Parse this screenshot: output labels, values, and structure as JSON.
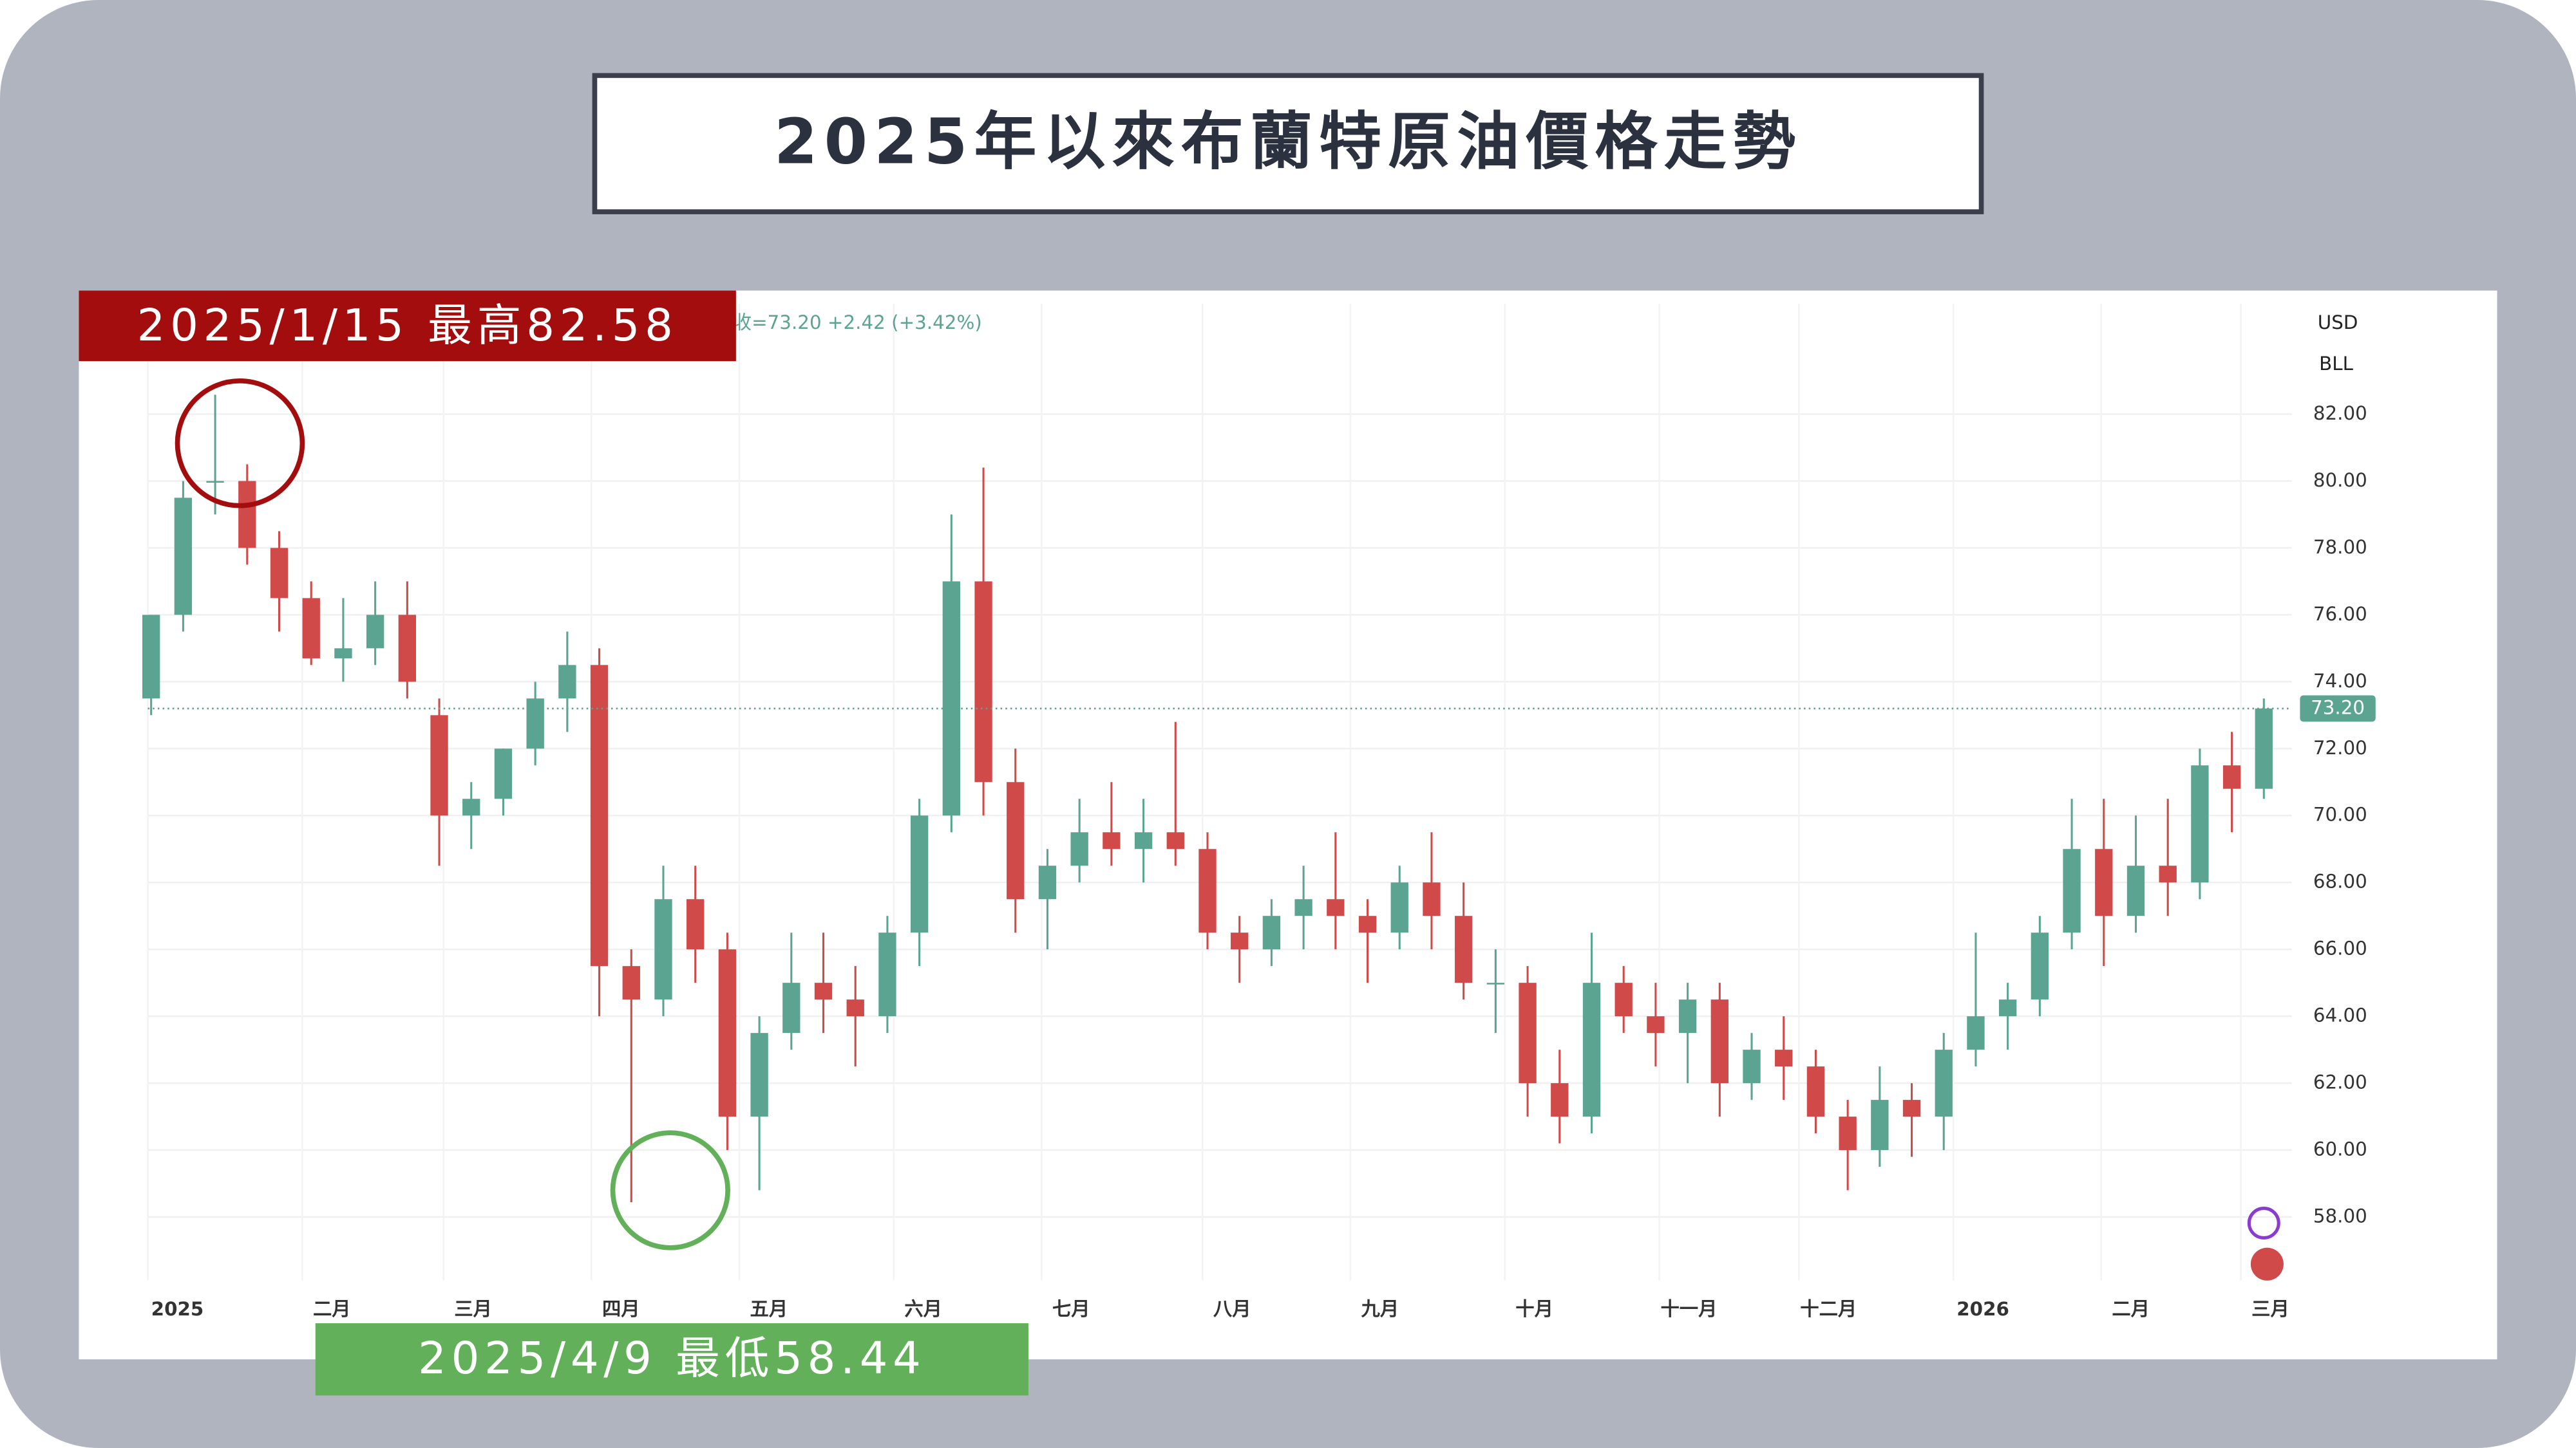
{
  "chart_data": {
    "type": "candlestick",
    "title": "2025年以來布蘭特原油價格走勢",
    "legend_text": "收=73.20  +2.42 (+3.42%)",
    "currency": "USD",
    "unit": "BLL",
    "last_price": {
      "value": 73.2,
      "label": "73.20"
    },
    "annotations": [
      "2025/1/15 最高82.58",
      "2025/4/9 最低58.44"
    ],
    "month_labels": [
      "2025",
      "二月",
      "三月",
      "四月",
      "五月",
      "六月",
      "七月",
      "八月",
      "九月",
      "十月",
      "十一月",
      "十二月",
      "2026",
      "二月",
      "三月"
    ],
    "up_color": "#5aa491",
    "down_color": "#d04a4a",
    "ylim": [
      56.1,
      85.3
    ],
    "yticks": [
      {
        "value": 58,
        "label": "58.00"
      },
      {
        "value": 60,
        "label": "60.00"
      },
      {
        "value": 62,
        "label": "62.00"
      },
      {
        "value": 64,
        "label": "64.00"
      },
      {
        "value": 66,
        "label": "66.00"
      },
      {
        "value": 68,
        "label": "68.00"
      },
      {
        "value": 70,
        "label": "70.00"
      },
      {
        "value": 72,
        "label": "72.00"
      },
      {
        "value": 74,
        "label": "74.00"
      },
      {
        "value": 76,
        "label": "76.00"
      },
      {
        "value": 78,
        "label": "78.00"
      },
      {
        "value": 80,
        "label": "80.00"
      },
      {
        "value": 82,
        "label": "82.00"
      }
    ],
    "grid": true,
    "open": [
      73.5,
      76,
      80,
      80,
      78,
      76.5,
      74.7,
      75,
      76,
      73,
      70,
      70.5,
      72,
      73.5,
      74.5,
      65.5,
      64.5,
      67.5,
      66,
      61,
      63.5,
      65,
      64.5,
      64,
      66.5,
      70,
      77,
      71,
      67.5,
      68.5,
      69.5,
      69,
      69.5,
      69,
      66.5,
      66,
      67,
      67.5,
      67,
      66.5,
      68,
      67,
      65,
      65,
      62,
      61,
      65,
      64,
      63.5,
      64.5,
      62,
      63,
      62.5,
      61,
      60,
      61.5,
      61,
      63,
      64,
      64.5,
      66.5,
      69,
      67,
      68.5,
      68,
      71.5,
      70.8
    ],
    "high": [
      76,
      80,
      82.58,
      80.5,
      78.5,
      77,
      76.5,
      77,
      77,
      73.5,
      71,
      72,
      74,
      75.5,
      75,
      66,
      68.5,
      68.5,
      66.5,
      64,
      66.5,
      66.5,
      65.5,
      67,
      70.5,
      79,
      80.4,
      72,
      69,
      70.5,
      71,
      70.5,
      72.8,
      69.5,
      67,
      67.5,
      68.5,
      69.5,
      67.5,
      68.5,
      69.5,
      68,
      66,
      65.5,
      63,
      66.5,
      65.5,
      65,
      65,
      65,
      63.5,
      64,
      63,
      61.5,
      62.5,
      62,
      63.5,
      66.5,
      65,
      67,
      70.5,
      70.5,
      70,
      70.5,
      72,
      72.5,
      73.5
    ],
    "low": [
      73,
      75.5,
      79,
      77.5,
      75.5,
      74.5,
      74,
      74.5,
      73.5,
      68.5,
      69,
      70,
      71.5,
      72.5,
      64,
      58.44,
      64,
      65,
      60,
      58.8,
      63,
      63.5,
      62.5,
      63.5,
      65.5,
      69.5,
      70,
      66.5,
      66,
      68,
      68.5,
      68,
      68.5,
      66,
      65,
      65.5,
      66,
      66,
      65,
      66,
      66,
      64.5,
      63.5,
      61,
      60.2,
      60.5,
      63.5,
      62.5,
      62,
      61,
      61.5,
      61.5,
      60.5,
      58.8,
      59.5,
      59.8,
      60,
      62.5,
      63,
      64,
      66,
      65.5,
      66.5,
      67,
      67.5,
      69.5,
      70.5
    ],
    "close": [
      76,
      79.5,
      80,
      78,
      76.5,
      74.7,
      75,
      76,
      74,
      70,
      70.5,
      72,
      73.5,
      74.5,
      65.5,
      64.5,
      67.5,
      66,
      61,
      63.5,
      65,
      64.5,
      64,
      66.5,
      70,
      77,
      71,
      67.5,
      68.5,
      69.5,
      69,
      69.5,
      69,
      66.5,
      66,
      67,
      67.5,
      67,
      66.5,
      68,
      67,
      65,
      65,
      62,
      61,
      65,
      64,
      63.5,
      64.5,
      62,
      63,
      62.5,
      61,
      60,
      61.5,
      61,
      63,
      64,
      64.5,
      66.5,
      69,
      67,
      68.5,
      68,
      71.5,
      70.8,
      73.2
    ]
  }
}
